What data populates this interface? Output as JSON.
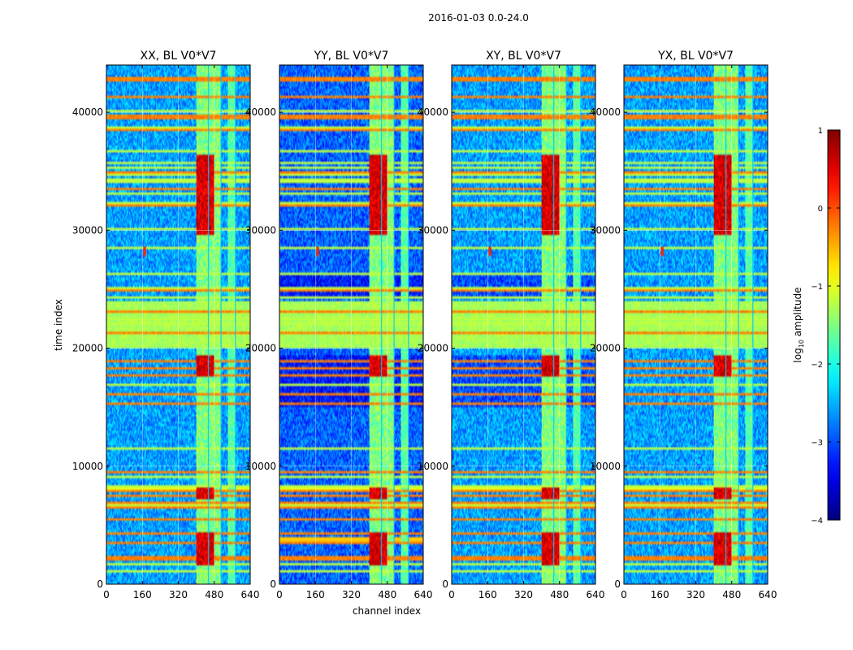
{
  "figure": {
    "title": "2016-01-03 0.0-24.0",
    "xlabel": "channel index",
    "ylabel": "time index"
  },
  "chart_data": [
    {
      "type": "heatmap",
      "title": "XX, BL V0*V7",
      "xlim": [
        0,
        640
      ],
      "ylim": [
        0,
        44000
      ],
      "xticks": [
        0,
        160,
        320,
        480,
        640
      ],
      "yticks": [
        0,
        10000,
        20000,
        30000,
        40000
      ]
    },
    {
      "type": "heatmap",
      "title": "YY, BL V0*V7",
      "xlim": [
        0,
        640
      ],
      "ylim": [
        0,
        44000
      ],
      "xticks": [
        0,
        160,
        320,
        480,
        640
      ],
      "yticks": [
        0,
        10000,
        20000,
        30000,
        40000
      ]
    },
    {
      "type": "heatmap",
      "title": "XY, BL V0*V7",
      "xlim": [
        0,
        640
      ],
      "ylim": [
        0,
        44000
      ],
      "xticks": [
        0,
        160,
        320,
        480,
        640
      ],
      "yticks": [
        0,
        10000,
        20000,
        30000,
        40000
      ]
    },
    {
      "type": "heatmap",
      "title": "YX, BL V0*V7",
      "xlim": [
        0,
        640
      ],
      "ylim": [
        0,
        44000
      ],
      "xticks": [
        0,
        160,
        320,
        480,
        640
      ],
      "yticks": [
        0,
        10000,
        20000,
        30000,
        40000
      ]
    }
  ],
  "colorbar": {
    "label": "log",
    "label_sub": "10",
    "label_rest": " amplitude",
    "range": [
      -4,
      1
    ],
    "ticks": [
      {
        "v": 1,
        "label": "1"
      },
      {
        "v": 0,
        "label": "0"
      },
      {
        "v": -1,
        "label": "−1"
      },
      {
        "v": -2,
        "label": "−2"
      },
      {
        "v": -3,
        "label": "−3"
      },
      {
        "v": -4,
        "label": "−4"
      }
    ],
    "colormap": "jet"
  },
  "features": {
    "rfi_bands": [
      [
        400,
        455
      ],
      [
        456,
        480
      ],
      [
        482,
        510
      ],
      [
        540,
        575
      ]
    ],
    "hot_times": [
      [
        1500,
        4500
      ],
      [
        7200,
        8200
      ],
      [
        17500,
        19500
      ],
      [
        29500,
        36500
      ]
    ],
    "noisy_time_band": [
      20000,
      24000
    ],
    "spike": {
      "channel": 170,
      "time": 28200
    }
  }
}
